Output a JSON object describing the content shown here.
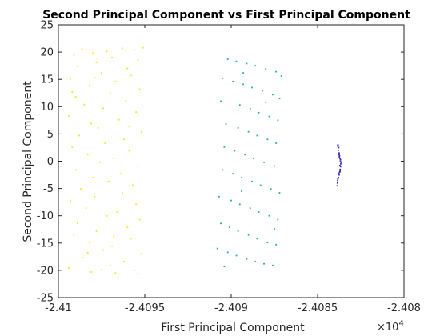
{
  "chart_data": {
    "type": "scatter",
    "title": "Second Principal Component vs First Principal Component",
    "xlabel": "First Principal Component",
    "ylabel": "Second Principal Component",
    "x_exponent_label": "×10^4",
    "x_exponent_base": "×10",
    "x_exponent_power": "4",
    "xlim": [
      -24100,
      -24080
    ],
    "ylim": [
      -25,
      25
    ],
    "x_ticks": [
      -24100,
      -24095,
      -24090,
      -24085,
      -24080
    ],
    "x_tick_labels": [
      "-2.41",
      "-2.4095",
      "-2.409",
      "-2.4085",
      "-2.408"
    ],
    "y_ticks": [
      -25,
      -20,
      -15,
      -10,
      -5,
      0,
      5,
      10,
      15,
      20,
      25
    ],
    "y_tick_labels": [
      "-25",
      "-20",
      "-15",
      "-10",
      "-5",
      "0",
      "5",
      "10",
      "15",
      "20",
      "25"
    ],
    "grid": false,
    "box": true,
    "clusters": [
      {
        "color": "#f2e51a",
        "marker": "point",
        "points": [
          [
            -24098.6,
            20.5
          ],
          [
            -24097.2,
            20.1
          ],
          [
            -24096.3,
            20.7
          ],
          [
            -24095.6,
            20.4
          ],
          [
            -24095.1,
            20.8
          ],
          [
            -24098.0,
            19.8
          ],
          [
            -24099.1,
            19.5
          ],
          [
            -24096.9,
            19.0
          ],
          [
            -24095.4,
            18.6
          ],
          [
            -24097.8,
            18.1
          ],
          [
            -24098.9,
            17.4
          ],
          [
            -24096.0,
            17.0
          ],
          [
            -24097.5,
            16.2
          ],
          [
            -24095.8,
            15.7
          ],
          [
            -24099.3,
            15.1
          ],
          [
            -24096.7,
            14.6
          ],
          [
            -24098.2,
            13.9
          ],
          [
            -24095.3,
            13.2
          ],
          [
            -24097.0,
            12.5
          ],
          [
            -24099.0,
            11.8
          ],
          [
            -24096.1,
            11.1
          ],
          [
            -24098.5,
            10.4
          ],
          [
            -24097.4,
            9.7
          ],
          [
            -24095.5,
            9.0
          ],
          [
            -24099.4,
            8.3
          ],
          [
            -24096.5,
            7.6
          ],
          [
            -24098.1,
            6.9
          ],
          [
            -24097.7,
            6.1
          ],
          [
            -24095.2,
            5.4
          ],
          [
            -24098.8,
            4.7
          ],
          [
            -24096.2,
            4.0
          ],
          [
            -24097.3,
            3.3
          ],
          [
            -24099.2,
            2.6
          ],
          [
            -24095.9,
            1.9
          ],
          [
            -24098.3,
            1.2
          ],
          [
            -24096.8,
            0.5
          ],
          [
            -24097.6,
            -0.2
          ],
          [
            -24095.4,
            -0.9
          ],
          [
            -24099.0,
            -1.6
          ],
          [
            -24096.4,
            -2.3
          ],
          [
            -24098.0,
            -3.0
          ],
          [
            -24097.1,
            -3.7
          ],
          [
            -24095.7,
            -4.4
          ],
          [
            -24098.7,
            -5.1
          ],
          [
            -24096.3,
            -5.8
          ],
          [
            -24097.9,
            -6.5
          ],
          [
            -24099.3,
            -7.2
          ],
          [
            -24095.5,
            -7.9
          ],
          [
            -24098.4,
            -8.6
          ],
          [
            -24096.6,
            -9.3
          ],
          [
            -24097.2,
            -10.0
          ],
          [
            -24095.3,
            -10.7
          ],
          [
            -24098.9,
            -11.4
          ],
          [
            -24096.0,
            -12.1
          ],
          [
            -24097.8,
            -12.8
          ],
          [
            -24099.1,
            -13.5
          ],
          [
            -24095.8,
            -14.2
          ],
          [
            -24098.2,
            -14.9
          ],
          [
            -24096.9,
            -15.6
          ],
          [
            -24097.4,
            -16.3
          ],
          [
            -24095.2,
            -17.0
          ],
          [
            -24098.6,
            -17.7
          ],
          [
            -24096.2,
            -18.4
          ],
          [
            -24097.0,
            -19.1
          ],
          [
            -24099.4,
            -19.6
          ],
          [
            -24095.6,
            -20.0
          ],
          [
            -24098.1,
            -20.3
          ],
          [
            -24096.7,
            -20.5
          ],
          [
            -24097.5,
            -19.9
          ],
          [
            -24095.4,
            -20.6
          ],
          [
            -24098.3,
            -16.8
          ],
          [
            -24097.9,
            15.3
          ],
          [
            -24099.2,
            12.7
          ],
          [
            -24096.8,
            -13.8
          ],
          [
            -24095.9,
            6.4
          ]
        ]
      },
      {
        "color": "#22a9b8",
        "marker": "point",
        "points": [
          [
            -24090.2,
            18.7
          ],
          [
            -24089.7,
            18.3
          ],
          [
            -24089.1,
            17.9
          ],
          [
            -24088.6,
            17.5
          ],
          [
            -24088.0,
            16.9
          ],
          [
            -24087.4,
            16.4
          ],
          [
            -24087.1,
            15.6
          ],
          [
            -24090.5,
            15.2
          ],
          [
            -24089.9,
            14.6
          ],
          [
            -24089.3,
            14.1
          ],
          [
            -24088.8,
            13.5
          ],
          [
            -24088.2,
            12.9
          ],
          [
            -24087.6,
            12.2
          ],
          [
            -24087.2,
            11.5
          ],
          [
            -24090.6,
            11.0
          ],
          [
            -24089.5,
            10.3
          ],
          [
            -24088.9,
            9.6
          ],
          [
            -24088.4,
            8.9
          ],
          [
            -24087.8,
            8.2
          ],
          [
            -24087.3,
            7.5
          ],
          [
            -24090.3,
            6.8
          ],
          [
            -24089.6,
            6.1
          ],
          [
            -24089.0,
            5.4
          ],
          [
            -24088.5,
            4.7
          ],
          [
            -24087.9,
            4.0
          ],
          [
            -24087.4,
            3.3
          ],
          [
            -24090.4,
            2.6
          ],
          [
            -24089.8,
            1.9
          ],
          [
            -24089.2,
            1.2
          ],
          [
            -24088.7,
            0.5
          ],
          [
            -24088.1,
            -0.2
          ],
          [
            -24087.5,
            -0.9
          ],
          [
            -24090.5,
            -1.6
          ],
          [
            -24089.9,
            -2.3
          ],
          [
            -24089.4,
            -3.0
          ],
          [
            -24088.8,
            -3.7
          ],
          [
            -24088.3,
            -4.4
          ],
          [
            -24087.7,
            -5.1
          ],
          [
            -24087.2,
            -5.8
          ],
          [
            -24090.7,
            -6.5
          ],
          [
            -24090.0,
            -7.2
          ],
          [
            -24089.5,
            -7.9
          ],
          [
            -24088.9,
            -8.6
          ],
          [
            -24088.4,
            -9.3
          ],
          [
            -24087.8,
            -10.0
          ],
          [
            -24087.3,
            -10.7
          ],
          [
            -24090.6,
            -11.4
          ],
          [
            -24090.1,
            -12.1
          ],
          [
            -24089.6,
            -12.8
          ],
          [
            -24089.0,
            -13.5
          ],
          [
            -24088.5,
            -14.2
          ],
          [
            -24087.9,
            -14.9
          ],
          [
            -24087.4,
            -15.3
          ],
          [
            -24090.8,
            -16.0
          ],
          [
            -24090.2,
            -16.7
          ],
          [
            -24089.7,
            -17.3
          ],
          [
            -24089.1,
            -17.9
          ],
          [
            -24088.6,
            -18.4
          ],
          [
            -24088.1,
            -18.8
          ],
          [
            -24087.6,
            -19.1
          ],
          [
            -24090.4,
            -19.3
          ],
          [
            -24089.3,
            16.2
          ],
          [
            -24088.0,
            10.8
          ],
          [
            -24089.4,
            -5.5
          ],
          [
            -24087.5,
            -12.4
          ]
        ]
      },
      {
        "color": "#3b2bb5",
        "marker": "point",
        "points": [
          [
            -24083.82,
            3.0
          ],
          [
            -24083.78,
            2.5
          ],
          [
            -24083.8,
            2.0
          ],
          [
            -24083.75,
            1.5
          ],
          [
            -24083.73,
            1.0
          ],
          [
            -24083.7,
            0.5
          ],
          [
            -24083.68,
            0.0
          ],
          [
            -24083.66,
            -0.5
          ],
          [
            -24083.67,
            -1.0
          ],
          [
            -24083.69,
            -1.5
          ],
          [
            -24083.72,
            -2.0
          ],
          [
            -24083.75,
            -2.5
          ],
          [
            -24083.79,
            -3.0
          ],
          [
            -24083.84,
            -3.5
          ],
          [
            -24083.85,
            -4.0
          ],
          [
            -24083.86,
            -4.5
          ],
          [
            -24083.85,
            2.8
          ],
          [
            -24083.76,
            1.2
          ],
          [
            -24083.71,
            -0.8
          ],
          [
            -24083.77,
            -2.2
          ],
          [
            -24083.64,
            -0.2
          ],
          [
            -24083.74,
            0.8
          ],
          [
            -24083.82,
            -3.2
          ],
          [
            -24083.7,
            -1.8
          ],
          [
            -24083.68,
            0.3
          ]
        ]
      }
    ]
  }
}
